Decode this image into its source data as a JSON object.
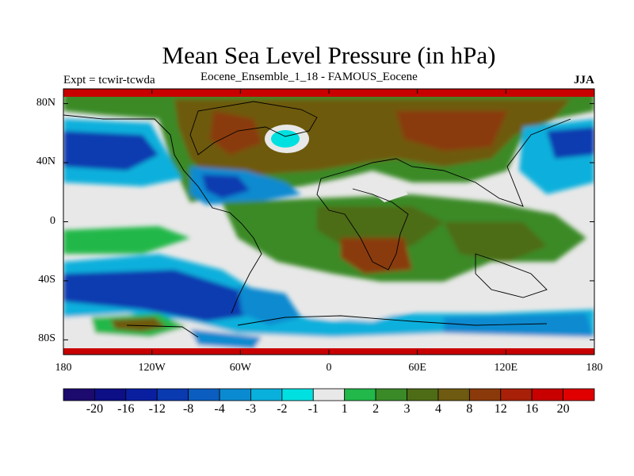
{
  "title": "Mean Sea Level Pressure (in hPa)",
  "subtitle": "Eocene_Ensemble_1_18 - FAMOUS_Eocene",
  "expt_label": "Expt = tcwir-tcwda",
  "season": "JJA",
  "map": {
    "lon_range": [
      -180,
      180
    ],
    "lat_range": [
      -90,
      90
    ],
    "lat_ticks": [
      {
        "value": 80,
        "label": "80N"
      },
      {
        "value": 40,
        "label": "40N"
      },
      {
        "value": 0,
        "label": "0"
      },
      {
        "value": -40,
        "label": "40S"
      },
      {
        "value": -80,
        "label": "80S"
      }
    ],
    "lon_ticks": [
      {
        "value": -180,
        "label": "180"
      },
      {
        "value": -120,
        "label": "120W"
      },
      {
        "value": -60,
        "label": "60W"
      },
      {
        "value": 0,
        "label": "0"
      },
      {
        "value": 60,
        "label": "60E"
      },
      {
        "value": 120,
        "label": "120E"
      },
      {
        "value": 180,
        "label": "180"
      }
    ]
  },
  "colorbar": {
    "labels": [
      "-20",
      "-16",
      "-12",
      "-8",
      "-4",
      "-3",
      "-2",
      "-1",
      "1",
      "2",
      "3",
      "4",
      "8",
      "12",
      "16",
      "20"
    ],
    "colors": [
      "#1c0a6e",
      "#0c0f86",
      "#0a1fa0",
      "#0a3ab0",
      "#0b5ec0",
      "#0a8ad0",
      "#0ab0dc",
      "#00e0e0",
      "#e8e8e8",
      "#22b84a",
      "#3a8a28",
      "#4e6c16",
      "#6e5a10",
      "#8a3a0a",
      "#a82008",
      "#c80000",
      "#e00000"
    ]
  }
}
